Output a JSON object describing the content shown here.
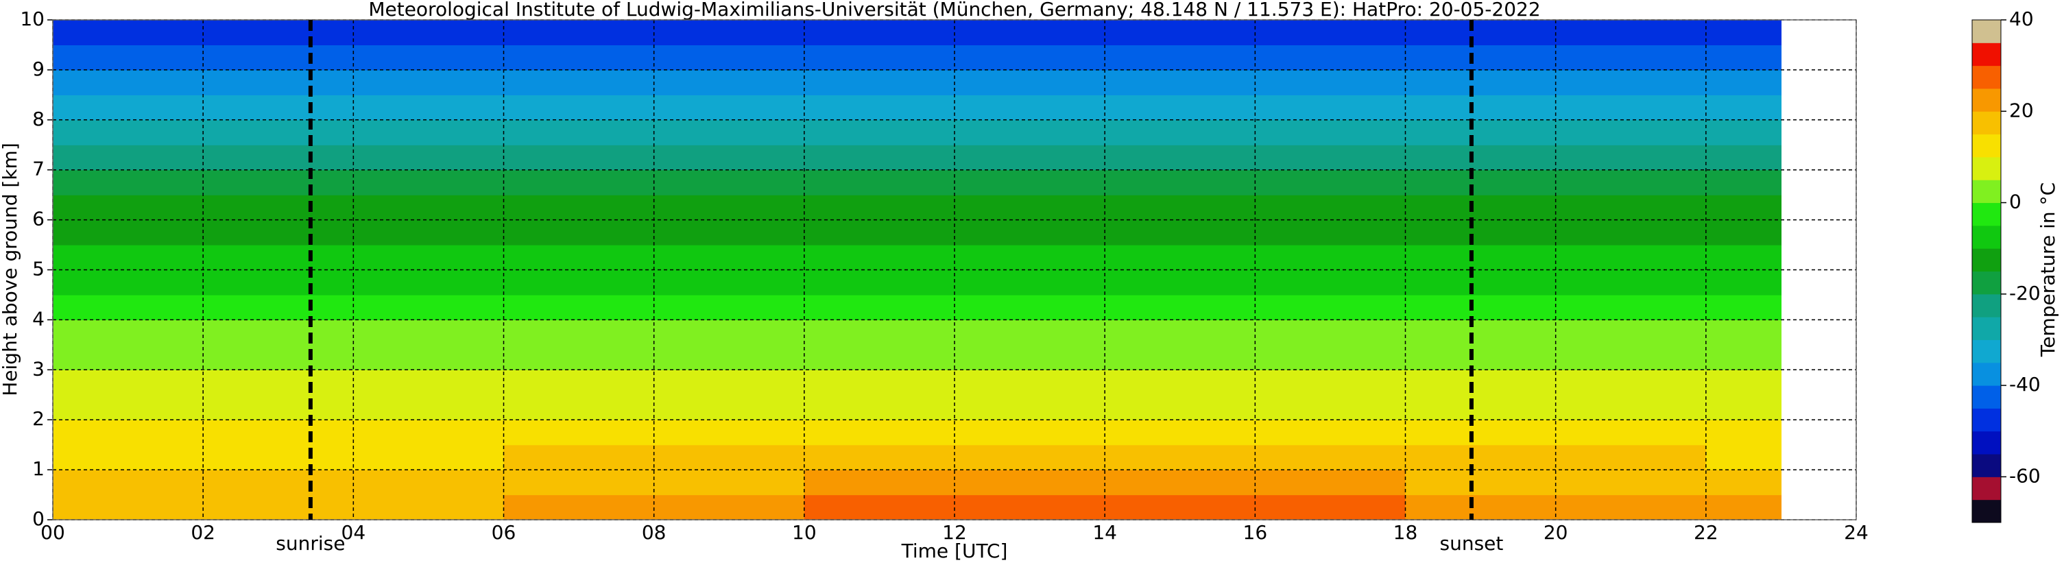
{
  "chart_data": {
    "type": "heatmap",
    "title": "Meteorological Institute of Ludwig-Maximilians-Universität (München, Germany; 48.148 N / 11.573 E):    HatPro: 20-05-2022",
    "xlabel": "Time [UTC]",
    "ylabel": "Height above ground [km]",
    "xlim": [
      0,
      24
    ],
    "xticks": [
      {
        "value": 0,
        "label": "00"
      },
      {
        "value": 2,
        "label": "02"
      },
      {
        "value": 4,
        "label": "04"
      },
      {
        "value": 6,
        "label": "06"
      },
      {
        "value": 8,
        "label": "08"
      },
      10,
      12,
      14,
      16,
      18,
      20,
      22,
      24
    ],
    "ylim": [
      0,
      10
    ],
    "yticks": [
      0,
      1,
      2,
      3,
      4,
      5,
      6,
      7,
      8,
      9,
      10
    ],
    "grid": true,
    "x": [
      0,
      2,
      4,
      6,
      8,
      10,
      12,
      14,
      16,
      18,
      20,
      22,
      23
    ],
    "y": [
      0,
      0.5,
      1,
      1.5,
      2,
      2.5,
      3,
      3.5,
      4,
      4.5,
      5,
      5.5,
      6,
      6.5,
      7,
      7.5,
      8,
      8.5,
      9,
      9.5,
      10
    ],
    "values": [
      [
        19,
        18,
        18,
        20,
        24,
        25,
        27,
        27,
        27,
        24,
        22,
        20
      ],
      [
        16,
        15,
        15,
        17,
        19,
        20,
        21,
        21,
        21,
        19,
        18,
        17
      ],
      [
        14,
        13,
        13,
        15,
        16,
        16,
        17,
        17,
        17,
        16,
        15,
        14
      ],
      [
        11,
        10,
        10,
        12,
        13,
        13,
        14,
        14,
        14,
        13,
        12,
        11
      ],
      [
        9,
        9,
        9,
        9,
        9,
        9,
        9,
        9,
        9,
        9,
        9,
        9
      ],
      [
        6,
        6,
        6,
        6,
        6,
        6,
        6,
        6,
        6,
        6,
        6,
        6
      ],
      [
        3,
        3,
        3,
        3,
        3,
        3,
        3,
        3,
        3,
        3,
        3,
        3
      ],
      [
        0,
        0,
        0,
        0,
        0,
        0,
        0,
        0,
        0,
        0,
        0,
        0
      ],
      [
        -3,
        -3,
        -3,
        -3,
        -3,
        -3,
        -3,
        -3,
        -3,
        -3,
        -3,
        -3
      ],
      [
        -6,
        -6,
        -6,
        -6,
        -6,
        -6,
        -6,
        -6,
        -6,
        -6,
        -6,
        -6
      ],
      [
        -9,
        -9,
        -9,
        -9,
        -9,
        -9,
        -9,
        -9,
        -9,
        -9,
        -9,
        -9
      ],
      [
        -12,
        -12,
        -12,
        -12,
        -12,
        -12,
        -12,
        -12,
        -12,
        -12,
        -12,
        -12
      ],
      [
        -15,
        -15,
        -15,
        -15,
        -15,
        -15,
        -15,
        -15,
        -15,
        -15,
        -15,
        -15
      ],
      [
        -19,
        -19,
        -19,
        -19,
        -19,
        -19,
        -19,
        -19,
        -19,
        -19,
        -19,
        -19
      ],
      [
        -24,
        -24,
        -24,
        -24,
        -24,
        -24,
        -24,
        -24,
        -24,
        -24,
        -24,
        -24
      ],
      [
        -28,
        -28,
        -28,
        -28,
        -28,
        -28,
        -28,
        -28,
        -28,
        -28,
        -28,
        -28
      ],
      [
        -32,
        -32,
        -32,
        -32,
        -32,
        -32,
        -32,
        -32,
        -32,
        -32,
        -32,
        -32
      ],
      [
        -36,
        -36,
        -36,
        -36,
        -36,
        -36,
        -36,
        -36,
        -36,
        -36,
        -36,
        -36
      ],
      [
        -41,
        -41,
        -41,
        -41,
        -41,
        -41,
        -41,
        -41,
        -41,
        -41,
        -41,
        -41
      ],
      [
        -47,
        -47,
        -47,
        -47,
        -47,
        -47,
        -47,
        -47,
        -47,
        -47,
        -47,
        -47
      ]
    ],
    "colorbar_label": "Temperature in °C",
    "clim": [
      -70,
      40
    ],
    "cticks": [
      -60,
      -40,
      -20,
      0,
      20,
      40
    ],
    "colors": [
      "#0d0a1e",
      "#a50f30",
      "#0a0a80",
      "#0010c0",
      "#0030e0",
      "#0060e8",
      "#0890e0",
      "#10a8d0",
      "#10a8a8",
      "#10a080",
      "#10a040",
      "#10a010",
      "#10c810",
      "#20e810",
      "#80f020",
      "#d8f010",
      "#f8e000",
      "#f8c000",
      "#f89800",
      "#f86000",
      "#f01000",
      "#d0c090"
    ],
    "annotations": [
      {
        "x": 3.43,
        "label": "sunrise"
      },
      {
        "x": 18.88,
        "label": "sunset"
      }
    ]
  }
}
